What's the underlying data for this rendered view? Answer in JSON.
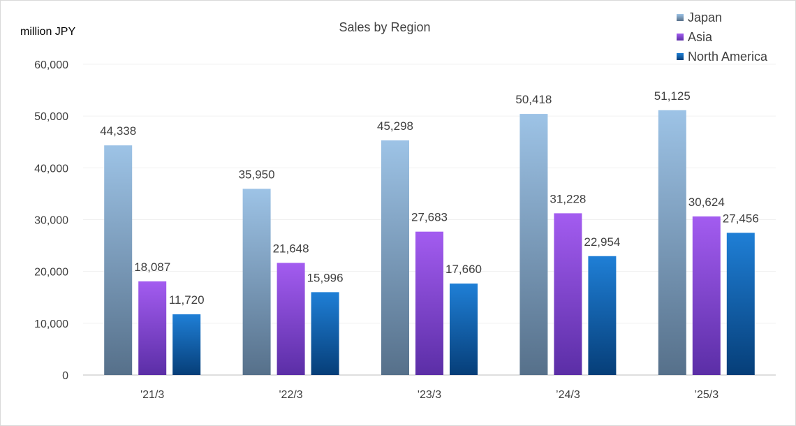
{
  "chart_data": {
    "type": "bar",
    "title": "Sales by Region",
    "ylabel": "million JPY",
    "xlabel": "",
    "categories": [
      "'21/3",
      "'22/3",
      "'23/3",
      "’24/3",
      "’25/3"
    ],
    "ylim": [
      0,
      60000
    ],
    "yticks": [
      "0",
      "10,000",
      "20,000",
      "30,000",
      "40,000",
      "50,000",
      "60,000"
    ],
    "grid": true,
    "legend_position": "top-right",
    "series": [
      {
        "name": "Japan",
        "values": [
          44338,
          35950,
          45298,
          50418,
          51125
        ],
        "labels": [
          "44,338",
          "35,950",
          "45,298",
          "50,418",
          "51,125"
        ],
        "color_top": "#9dc3e6",
        "color_bottom": "#56708a"
      },
      {
        "name": "Asia",
        "values": [
          18087,
          21648,
          27683,
          31228,
          30624
        ],
        "labels": [
          "18,087",
          "21,648",
          "27,683",
          "31,228",
          "30,624"
        ],
        "color_top": "#a35cf0",
        "color_bottom": "#5b2ea6"
      },
      {
        "name": "North America",
        "values": [
          11720,
          15996,
          17660,
          22954,
          27456
        ],
        "labels": [
          "11,720",
          "15,996",
          "17,660",
          "22,954",
          "27,456"
        ],
        "color_top": "#1f7fd6",
        "color_bottom": "#063e78"
      }
    ]
  }
}
